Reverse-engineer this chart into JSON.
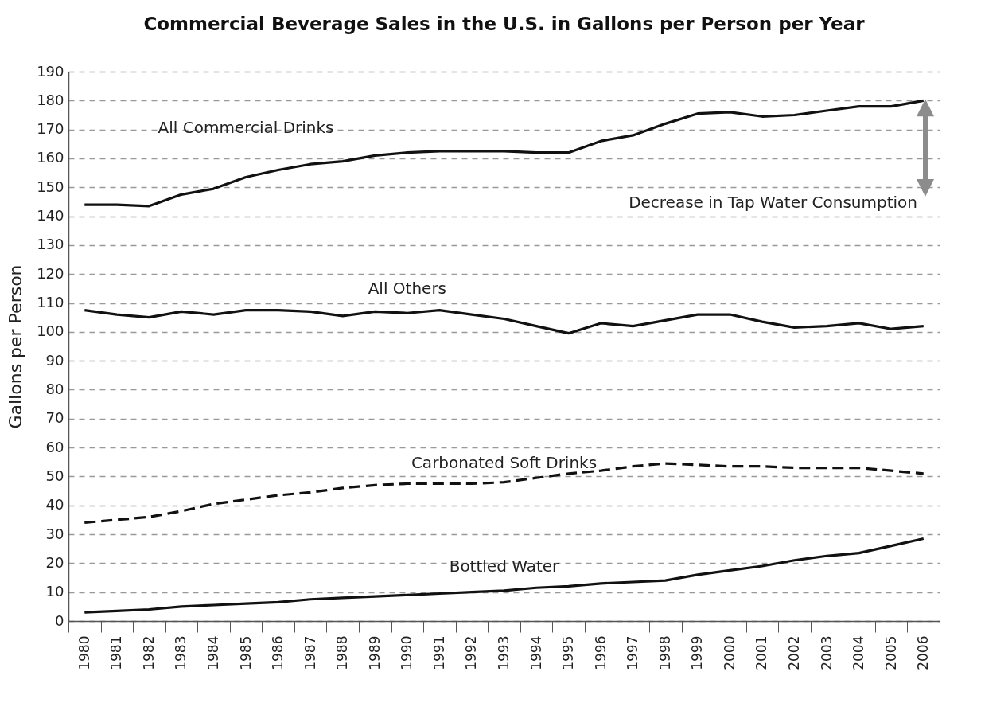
{
  "chart_data": {
    "type": "line",
    "title": "Commercial Beverage Sales in the U.S. in Gallons per Person per Year",
    "ylabel": "Gallons per Person",
    "categories": [
      "1980",
      "1981",
      "1982",
      "1983",
      "1984",
      "1985",
      "1986",
      "1987",
      "1988",
      "1989",
      "1990",
      "1991",
      "1992",
      "1993",
      "1994",
      "1995",
      "1996",
      "1997",
      "1998",
      "1999",
      "2000",
      "2001",
      "2002",
      "2003",
      "2004",
      "2005",
      "2006"
    ],
    "series": [
      {
        "name": "All Commercial Drinks",
        "color": "#111111",
        "line_style": "solid",
        "values": [
          144,
          144,
          143.5,
          147.5,
          149.5,
          153.5,
          156,
          158,
          159,
          161,
          162,
          162.5,
          162.5,
          162.5,
          162,
          162,
          166,
          168,
          172,
          175.5,
          176,
          174.5,
          175,
          176.5,
          178,
          178,
          180
        ]
      },
      {
        "name": "All Others",
        "color": "#111111",
        "line_style": "solid",
        "values": [
          107.5,
          106,
          105,
          107,
          106,
          107.5,
          107.5,
          107,
          105.5,
          107,
          106.5,
          107.5,
          106,
          104.5,
          102,
          99.5,
          103,
          102,
          104,
          106,
          106,
          103.5,
          101.5,
          102,
          103,
          101,
          102
        ]
      },
      {
        "name": "Carbonated Soft Drinks",
        "color": "#111111",
        "line_style": "dashed",
        "values": [
          34,
          35,
          36,
          38,
          40.5,
          42,
          43.5,
          44.5,
          46,
          47,
          47.5,
          47.5,
          47.5,
          48,
          49.5,
          51,
          52,
          53.5,
          54.5,
          54,
          53.5,
          53.5,
          53,
          53,
          53,
          52,
          51
        ]
      },
      {
        "name": "Bottled Water",
        "color": "#111111",
        "line_style": "solid",
        "values": [
          3,
          3.5,
          4,
          5,
          5.5,
          6,
          6.5,
          7.5,
          8,
          8.5,
          9,
          9.5,
          10,
          10.5,
          11.5,
          12,
          13,
          13.5,
          14,
          16,
          17.5,
          19,
          21,
          22.5,
          23.5,
          26,
          28.5
        ]
      }
    ],
    "annotations": [
      "Decrease in Tap Water Consumption"
    ],
    "ylim": [
      0,
      190
    ],
    "yticks": [
      0,
      10,
      20,
      30,
      40,
      50,
      60,
      70,
      80,
      90,
      100,
      110,
      120,
      130,
      140,
      150,
      160,
      170,
      180,
      190
    ],
    "grid": "y"
  }
}
